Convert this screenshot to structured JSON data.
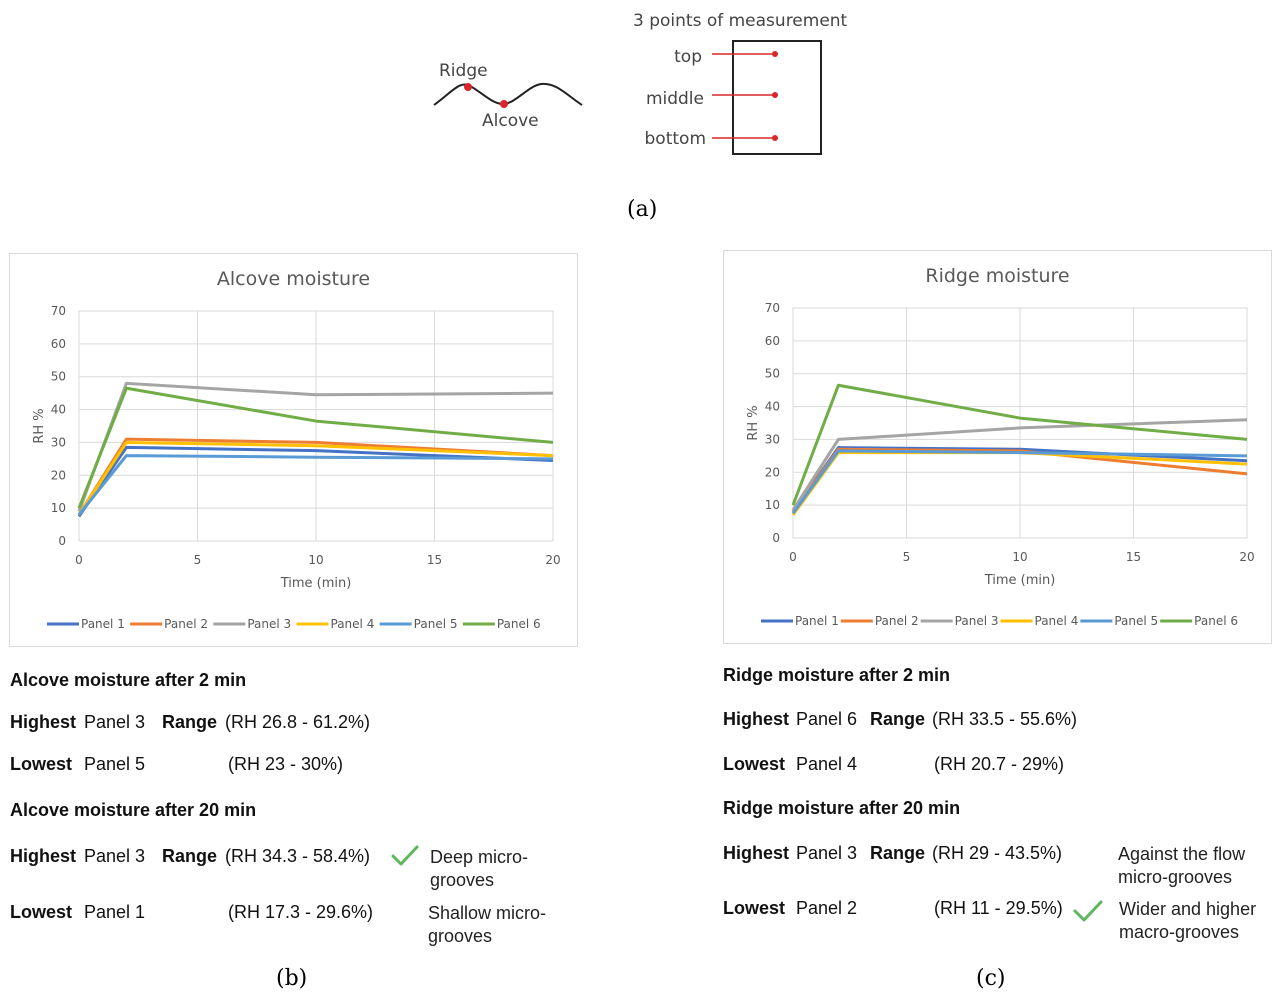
{
  "diagram": {
    "title": "3 points of measurement",
    "ridge_label": "Ridge",
    "alcove_label": "Alcove",
    "points": [
      "top",
      "middle",
      "bottom"
    ],
    "accent": "#d9262c"
  },
  "labels": {
    "a": "(a)",
    "b": "(b)",
    "c": "(c)"
  },
  "chart_data": [
    {
      "type": "line",
      "title": "Alcove moisture",
      "xlabel": "Time (min)",
      "ylabel": "RH %",
      "xlim": [
        0,
        20
      ],
      "ylim": [
        0,
        70
      ],
      "xticks": [
        0,
        5,
        10,
        15,
        20
      ],
      "yticks": [
        0,
        10,
        20,
        30,
        40,
        50,
        60,
        70
      ],
      "grid": true,
      "legend": "bottom",
      "x": [
        0,
        2,
        10,
        20
      ],
      "series": [
        {
          "name": "Panel 1",
          "color": "#4472c4",
          "values": [
            7.5,
            28.5,
            27.5,
            24.5
          ]
        },
        {
          "name": "Panel 2",
          "color": "#ed7d31",
          "values": [
            8,
            31,
            30,
            26
          ]
        },
        {
          "name": "Panel 3",
          "color": "#a5a5a5",
          "values": [
            9,
            48,
            44.5,
            45
          ]
        },
        {
          "name": "Panel 4",
          "color": "#ffc000",
          "values": [
            8,
            30,
            29,
            26
          ]
        },
        {
          "name": "Panel 5",
          "color": "#5b9bd5",
          "values": [
            8,
            26,
            25.5,
            25
          ]
        },
        {
          "name": "Panel 6",
          "color": "#70ad47",
          "values": [
            10,
            46.5,
            36.5,
            30
          ]
        }
      ]
    },
    {
      "type": "line",
      "title": "Ridge moisture",
      "xlabel": "Time (min)",
      "ylabel": "RH %",
      "xlim": [
        0,
        20
      ],
      "ylim": [
        0,
        70
      ],
      "xticks": [
        0,
        5,
        10,
        15,
        20
      ],
      "yticks": [
        0,
        10,
        20,
        30,
        40,
        50,
        60,
        70
      ],
      "grid": true,
      "legend": "bottom",
      "x": [
        0,
        2,
        10,
        20
      ],
      "series": [
        {
          "name": "Panel 1",
          "color": "#4472c4",
          "values": [
            8,
            27.5,
            27,
            23.5
          ]
        },
        {
          "name": "Panel 2",
          "color": "#ed7d31",
          "values": [
            8,
            27,
            26.5,
            19.5
          ]
        },
        {
          "name": "Panel 3",
          "color": "#a5a5a5",
          "values": [
            8.5,
            30,
            33.5,
            36
          ]
        },
        {
          "name": "Panel 4",
          "color": "#ffc000",
          "values": [
            7,
            26,
            26,
            22.5
          ]
        },
        {
          "name": "Panel 5",
          "color": "#5b9bd5",
          "values": [
            7.5,
            26.5,
            26,
            25
          ]
        },
        {
          "name": "Panel 6",
          "color": "#70ad47",
          "values": [
            10,
            46.5,
            36.5,
            30
          ]
        }
      ]
    }
  ],
  "alcove": {
    "after2_heading": "Alcove moisture after 2 min",
    "after2": {
      "highest_label": "Highest",
      "highest_panel": "Panel 3",
      "range_label": "Range",
      "highest_range": "(RH 26.8 - 61.2%)",
      "lowest_label": "Lowest",
      "lowest_panel": "Panel 5",
      "lowest_range": "(RH 23 - 30%)"
    },
    "after20_heading": "Alcove moisture after 20 min",
    "after20": {
      "highest_label": "Highest",
      "highest_panel": "Panel 3",
      "range_label": "Range",
      "highest_range": "(RH 34.3 - 58.4%)",
      "highest_note": "Deep micro-grooves",
      "lowest_label": "Lowest",
      "lowest_panel": "Panel 1",
      "lowest_range": "(RH 17.3 - 29.6%)",
      "lowest_note": "Shallow micro-grooves"
    }
  },
  "ridge": {
    "after2_heading": "Ridge moisture after 2 min",
    "after2": {
      "highest_label": "Highest",
      "highest_panel": "Panel 6",
      "range_label": "Range",
      "highest_range": "(RH 33.5 - 55.6%)",
      "lowest_label": "Lowest",
      "lowest_panel": "Panel 4",
      "lowest_range": "(RH 20.7 - 29%)"
    },
    "after20_heading": "Ridge moisture after 20 min",
    "after20": {
      "highest_label": "Highest",
      "highest_panel": "Panel 3",
      "range_label": "Range",
      "highest_range": "(RH 29 - 43.5%)",
      "highest_note": "Against the flow micro-grooves",
      "lowest_label": "Lowest",
      "lowest_panel": "Panel 2",
      "lowest_range": "(RH 11 - 29.5%)",
      "lowest_note": "Wider and higher macro-grooves"
    }
  },
  "check_color": "#5cb85c"
}
